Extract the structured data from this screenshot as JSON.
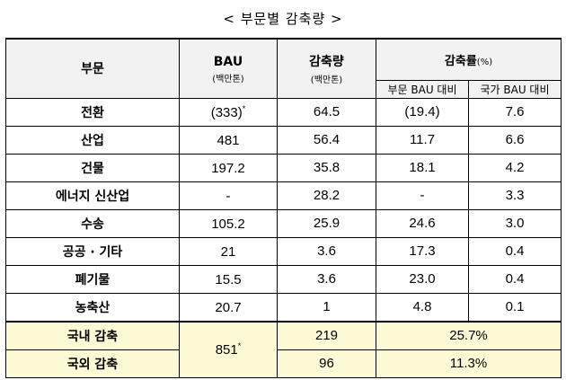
{
  "title": "< 부문별 감축량 >",
  "header": {
    "sector": "부문",
    "bau": "BAU",
    "bau_unit": "(백만톤)",
    "reduction": "감축량",
    "reduction_unit": "(백만톤)",
    "rate": "감축률",
    "rate_unit": "(%)",
    "rate_vs_sector": "부문 BAU 대비",
    "rate_vs_national": "국가 BAU 대비"
  },
  "rows": [
    {
      "sector": "전환",
      "bau": "(333)",
      "bau_mark": "*",
      "reduction": "64.5",
      "rate_sector": "(19.4)",
      "rate_national": "7.6"
    },
    {
      "sector": "산업",
      "bau": "481",
      "bau_mark": "",
      "reduction": "56.4",
      "rate_sector": "11.7",
      "rate_national": "6.6"
    },
    {
      "sector": "건물",
      "bau": "197.2",
      "bau_mark": "",
      "reduction": "35.8",
      "rate_sector": "18.1",
      "rate_national": "4.2"
    },
    {
      "sector": "에너지 신산업",
      "bau": "-",
      "bau_mark": "",
      "reduction": "28.2",
      "rate_sector": "-",
      "rate_national": "3.3"
    },
    {
      "sector": "수송",
      "bau": "105.2",
      "bau_mark": "",
      "reduction": "25.9",
      "rate_sector": "24.6",
      "rate_national": "3.0"
    },
    {
      "sector": "공공 · 기타",
      "bau": "21",
      "bau_mark": "",
      "reduction": "3.6",
      "rate_sector": "17.3",
      "rate_national": "0.4"
    },
    {
      "sector": "폐기물",
      "bau": "15.5",
      "bau_mark": "",
      "reduction": "3.6",
      "rate_sector": "23.0",
      "rate_national": "0.4"
    },
    {
      "sector": "농축산",
      "bau": "20.7",
      "bau_mark": "",
      "reduction": "1",
      "rate_sector": "4.8",
      "rate_national": "0.1"
    }
  ],
  "totals": {
    "bau": "851",
    "bau_mark": "*",
    "domestic": {
      "sector": "국내 감축",
      "reduction": "219",
      "rate": "25.7%"
    },
    "overseas": {
      "sector": "국외 감축",
      "reduction": "96",
      "rate": "11.3%"
    }
  },
  "colors": {
    "header_bg": "#f2f2f2",
    "total_bg": "#fdfbd6"
  }
}
